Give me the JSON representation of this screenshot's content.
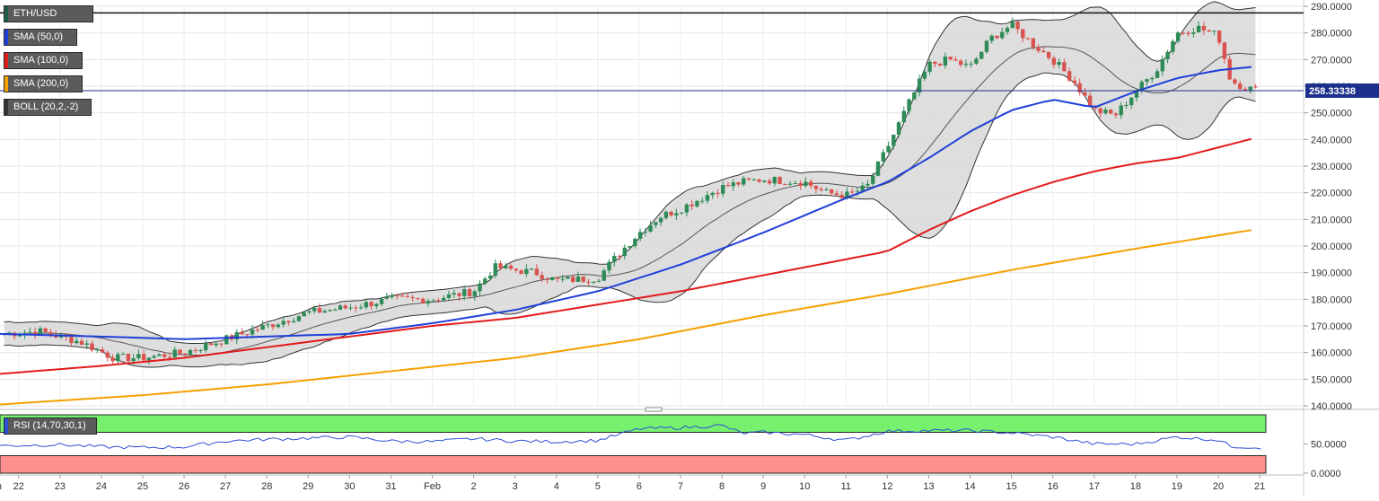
{
  "chart_data": {
    "type": "candlestick",
    "symbol": "ETH/USD",
    "last_price_label": "258.33338",
    "y_ticks": [
      "290.0000",
      "280.0000",
      "270.0000",
      "260.0000",
      "250.0000",
      "240.0000",
      "230.0000",
      "220.0000",
      "210.0000",
      "200.0000",
      "190.0000",
      "180.0000",
      "170.0000",
      "160.0000",
      "150.0000",
      "140.0000"
    ],
    "ylim": [
      140,
      290
    ],
    "x_ticks": [
      "Jan",
      "22",
      "23",
      "24",
      "25",
      "26",
      "27",
      "28",
      "29",
      "30",
      "31",
      "Feb",
      "2",
      "3",
      "4",
      "5",
      "6",
      "7",
      "8",
      "9",
      "10",
      "11",
      "12",
      "13",
      "14",
      "15",
      "16",
      "17",
      "18",
      "19",
      "20",
      "21"
    ],
    "x_tick_days": [
      -0.6,
      0,
      1,
      2,
      3,
      4,
      5,
      6,
      7,
      8,
      9,
      10,
      11,
      12,
      13,
      14,
      15,
      16,
      17,
      18,
      19,
      20,
      21,
      22,
      23,
      24,
      25,
      26,
      27,
      28,
      29,
      30
    ],
    "xlim_days": [
      -0.45,
      30.15
    ],
    "resistance_level": 287.5,
    "legend": [
      {
        "label": "ETH/USD",
        "color": "#1b5e45"
      },
      {
        "label": "SMA (50,0)",
        "color": "#1f3fd8"
      },
      {
        "label": "SMA (100,0)",
        "color": "#e21b1b"
      },
      {
        "label": "SMA (200,0)",
        "color": "#f5a000"
      },
      {
        "label": "BOLL (20,2,-2)",
        "color": "#333333"
      }
    ],
    "colors": {
      "up": "#2e8b57",
      "down": "#d9534f",
      "sma50": "#1f3fd8",
      "sma100": "#e21b1b",
      "sma200": "#f5a000",
      "boll": "#333333",
      "boll_fill": "#d8d8d8",
      "rsi": "#2d4fd6",
      "rsi_overbought": "#77f06d",
      "rsi_oversold": "#fd8f8f"
    },
    "price_key_points": [
      [
        -0.45,
        167
      ],
      [
        0.5,
        168
      ],
      [
        1.5,
        164
      ],
      [
        2.3,
        158
      ],
      [
        3,
        158
      ],
      [
        4,
        160
      ],
      [
        5,
        165
      ],
      [
        6,
        170
      ],
      [
        7,
        175
      ],
      [
        8,
        177
      ],
      [
        9,
        180
      ],
      [
        10,
        180
      ],
      [
        11,
        183
      ],
      [
        11.5,
        192
      ],
      [
        12.5,
        190
      ],
      [
        13,
        187
      ],
      [
        14,
        188
      ],
      [
        14.5,
        197
      ],
      [
        15,
        205
      ],
      [
        15.5,
        211
      ],
      [
        16,
        214
      ],
      [
        17,
        222
      ],
      [
        17.5,
        224
      ],
      [
        18,
        225
      ],
      [
        19,
        224
      ],
      [
        19.5,
        220
      ],
      [
        20,
        219
      ],
      [
        20.5,
        222
      ],
      [
        21,
        237
      ],
      [
        21.5,
        253
      ],
      [
        22,
        268
      ],
      [
        22.5,
        270
      ],
      [
        23,
        267
      ],
      [
        23.5,
        278
      ],
      [
        24,
        283
      ],
      [
        24.5,
        276
      ],
      [
        25,
        270
      ],
      [
        25.5,
        262
      ],
      [
        26,
        251
      ],
      [
        26.5,
        249
      ],
      [
        27,
        258
      ],
      [
        27.5,
        266
      ],
      [
        28,
        280
      ],
      [
        28.5,
        282
      ],
      [
        29,
        279
      ],
      [
        29.3,
        262
      ],
      [
        29.6,
        260
      ],
      [
        30,
        258
      ]
    ],
    "sma50_points": [
      [
        -0.45,
        167
      ],
      [
        2,
        166
      ],
      [
        4,
        165
      ],
      [
        6,
        166
      ],
      [
        8,
        167
      ],
      [
        10,
        171
      ],
      [
        12,
        176
      ],
      [
        14,
        183
      ],
      [
        16,
        193
      ],
      [
        18,
        205
      ],
      [
        20,
        218
      ],
      [
        21,
        224
      ],
      [
        22,
        233
      ],
      [
        23,
        243
      ],
      [
        24,
        251
      ],
      [
        25,
        255
      ],
      [
        26,
        252
      ],
      [
        27,
        258
      ],
      [
        28,
        263
      ],
      [
        29,
        266
      ],
      [
        30,
        267.5
      ]
    ],
    "sma100_points": [
      [
        -0.45,
        152
      ],
      [
        2,
        155
      ],
      [
        4,
        158
      ],
      [
        6,
        162
      ],
      [
        8,
        166
      ],
      [
        10,
        170
      ],
      [
        12,
        173
      ],
      [
        14,
        178
      ],
      [
        16,
        183
      ],
      [
        18,
        189
      ],
      [
        20,
        195
      ],
      [
        21,
        198
      ],
      [
        22,
        206
      ],
      [
        23,
        213
      ],
      [
        24,
        219
      ],
      [
        25,
        224
      ],
      [
        26,
        228
      ],
      [
        27,
        231
      ],
      [
        28,
        233
      ],
      [
        29,
        237
      ],
      [
        30,
        241
      ]
    ],
    "sma200_points": [
      [
        -0.45,
        140.5
      ],
      [
        3,
        144
      ],
      [
        6,
        148
      ],
      [
        9,
        153
      ],
      [
        12,
        158
      ],
      [
        15,
        165
      ],
      [
        18,
        174
      ],
      [
        21,
        182
      ],
      [
        24,
        191
      ],
      [
        27,
        199
      ],
      [
        30,
        206.5
      ]
    ],
    "rsi_key_points": [
      [
        -0.45,
        47
      ],
      [
        1,
        49
      ],
      [
        2,
        45
      ],
      [
        3,
        44
      ],
      [
        4,
        45
      ],
      [
        5,
        55
      ],
      [
        6,
        58
      ],
      [
        7,
        60
      ],
      [
        8,
        62
      ],
      [
        9,
        55
      ],
      [
        10,
        54
      ],
      [
        11,
        59
      ],
      [
        12,
        55
      ],
      [
        13,
        54
      ],
      [
        14,
        56
      ],
      [
        15,
        76
      ],
      [
        16,
        78
      ],
      [
        17,
        82
      ],
      [
        17.5,
        68
      ],
      [
        18,
        70
      ],
      [
        19,
        66
      ],
      [
        20,
        56
      ],
      [
        21,
        72
      ],
      [
        22,
        73
      ],
      [
        23,
        73
      ],
      [
        24,
        69
      ],
      [
        25,
        62
      ],
      [
        26,
        50
      ],
      [
        27,
        50
      ],
      [
        28,
        62
      ],
      [
        29,
        57
      ],
      [
        29.3,
        46
      ],
      [
        30,
        44
      ]
    ],
    "rsi_ticks": [
      "50.0000",
      "0.0000"
    ],
    "rsi_ylim": [
      0,
      100
    ],
    "rsi_overbought": 70,
    "rsi_oversold": 30,
    "rsi_legend": "RSI (14,70,30,1)"
  }
}
